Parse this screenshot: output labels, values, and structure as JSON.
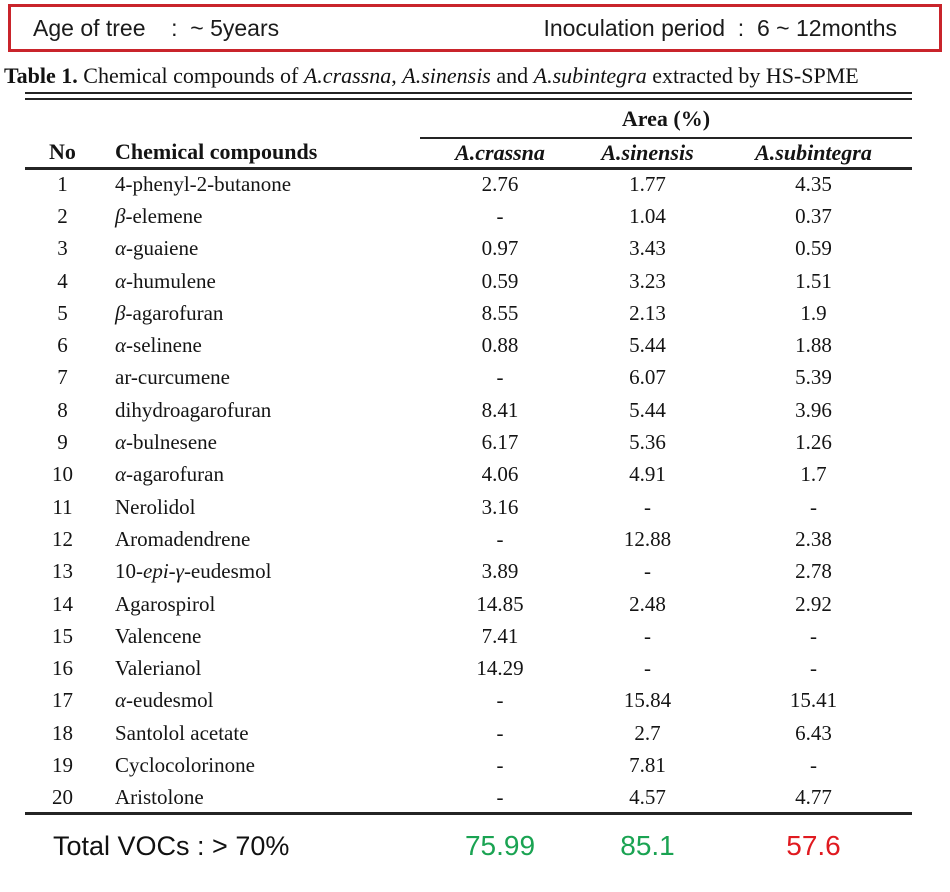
{
  "banner": {
    "left": "Age of tree    :  ~ 5years",
    "right": "Inoculation period  :  6 ~ 12months",
    "border_color": "#c9242b"
  },
  "caption": {
    "label": "Table 1.",
    "segments": [
      {
        "text": " Chemical compounds of ",
        "italic": false
      },
      {
        "text": "A.crassna",
        "italic": true
      },
      {
        "text": ", ",
        "italic": false
      },
      {
        "text": "A.sinensis",
        "italic": true
      },
      {
        "text": " and ",
        "italic": false
      },
      {
        "text": "A.subintegra",
        "italic": true
      },
      {
        "text": " extracted by HS-SPME",
        "italic": false
      }
    ]
  },
  "table": {
    "area_header": "Area (%)",
    "columns": {
      "no": "No",
      "compound": "Chemical compounds",
      "species": [
        "A.crassna",
        "A.sinensis",
        "A.subintegra"
      ]
    },
    "rows": [
      {
        "no": "1",
        "name": "4-phenyl-2-butanone",
        "values": [
          "2.76",
          "1.77",
          "4.35"
        ]
      },
      {
        "no": "2",
        "name": "β-elemene",
        "values": [
          "-",
          "1.04",
          "0.37"
        ]
      },
      {
        "no": "3",
        "name": "α-guaiene",
        "values": [
          "0.97",
          "3.43",
          "0.59"
        ]
      },
      {
        "no": "4",
        "name": "α-humulene",
        "values": [
          "0.59",
          "3.23",
          "1.51"
        ]
      },
      {
        "no": "5",
        "name": "β-agarofuran",
        "values": [
          "8.55",
          "2.13",
          "1.9"
        ]
      },
      {
        "no": "6",
        "name": "α-selinene",
        "values": [
          "0.88",
          "5.44",
          "1.88"
        ]
      },
      {
        "no": "7",
        "name": "ar-curcumene",
        "values": [
          "-",
          "6.07",
          "5.39"
        ]
      },
      {
        "no": "8",
        "name": "dihydroagarofuran",
        "values": [
          "8.41",
          "5.44",
          "3.96"
        ]
      },
      {
        "no": "9",
        "name": "α-bulnesene",
        "values": [
          "6.17",
          "5.36",
          "1.26"
        ]
      },
      {
        "no": "10",
        "name": "α-agarofuran",
        "values": [
          "4.06",
          "4.91",
          "1.7"
        ]
      },
      {
        "no": "11",
        "name": "Nerolidol",
        "values": [
          "3.16",
          "-",
          "-"
        ]
      },
      {
        "no": "12",
        "name": "Aromadendrene",
        "values": [
          "-",
          "12.88",
          "2.38"
        ]
      },
      {
        "no": "13",
        "name": "10-epi-γ-eudesmol",
        "values": [
          "3.89",
          "-",
          "2.78"
        ]
      },
      {
        "no": "14",
        "name": "Agarospirol",
        "values": [
          "14.85",
          "2.48",
          "2.92"
        ]
      },
      {
        "no": "15",
        "name": "Valencene",
        "values": [
          "7.41",
          "-",
          "-"
        ]
      },
      {
        "no": "16",
        "name": "Valerianol",
        "values": [
          "14.29",
          "-",
          "-"
        ]
      },
      {
        "no": "17",
        "name": "α-eudesmol",
        "values": [
          "-",
          "15.84",
          "15.41"
        ]
      },
      {
        "no": "18",
        "name": "Santolol acetate",
        "values": [
          "-",
          "2.7",
          "6.43"
        ]
      },
      {
        "no": "19",
        "name": "Cyclocolorinone",
        "values": [
          "-",
          "7.81",
          "-"
        ]
      },
      {
        "no": "20",
        "name": "Aristolone",
        "values": [
          "-",
          "4.57",
          "4.77"
        ]
      }
    ]
  },
  "footer": {
    "label": "Total VOCs : > 70%",
    "values": [
      {
        "text": "75.99",
        "color": "#1aa352"
      },
      {
        "text": "85.1",
        "color": "#1aa352"
      },
      {
        "text": "57.6",
        "color": "#e01a20"
      }
    ]
  }
}
